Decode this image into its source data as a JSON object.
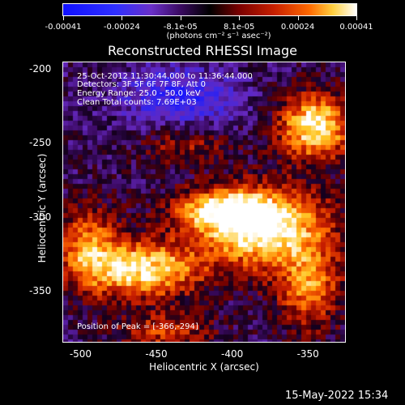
{
  "colorbar": {
    "ticks": [
      "-0.00041",
      "-0.00024",
      "-8.1e-05",
      "8.1e-05",
      "0.00024",
      "0.00041"
    ],
    "units": "(photons cm⁻² s⁻¹ asec⁻²)"
  },
  "title": "Reconstructed RHESSI Image",
  "annotations": {
    "time_range": "25-Oct-2012 11:30:44.000 to 11:36:44.000",
    "detectors": "Detectors: 3F 5F 6F 7F 8F, Att 0",
    "energy": "Energy Range: 25.0 - 50.0 keV",
    "clean": "Clean    Total counts: 7.69E+03",
    "peak": "Position of Peak = [-366,-294]"
  },
  "axes": {
    "xlabel": "Heliocentric X (arcsec)",
    "ylabel": "Heliocentric Y (arcsec)",
    "xticks": [
      "-500",
      "-450",
      "-400",
      "-350"
    ],
    "yticks": [
      "-200",
      "-250",
      "-300",
      "-350"
    ]
  },
  "footer": {
    "date": "15-May-2022 15:34"
  },
  "chart_data": {
    "type": "heatmap",
    "x_range": [
      -512,
      -325
    ],
    "y_range": [
      -385,
      -195
    ],
    "xticks": [
      -500,
      -450,
      -400,
      -350
    ],
    "yticks": [
      -200,
      -250,
      -300,
      -350
    ],
    "colorbar_range": [
      -0.00041,
      0.00041
    ],
    "peak": [
      -366,
      -294
    ]
  }
}
